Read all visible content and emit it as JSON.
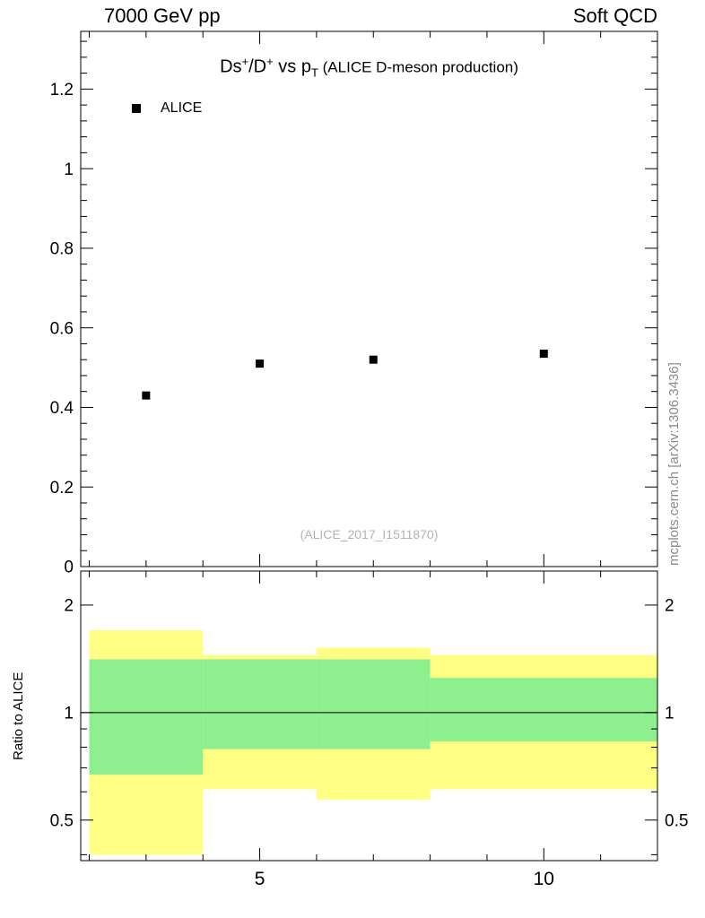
{
  "header": {
    "left": "7000 GeV pp",
    "right": "Soft QCD"
  },
  "title": {
    "p1": "Ds",
    "sup1": "+",
    "p2": "/D",
    "sup2": "+",
    "p3": " vs p",
    "sub": "T",
    "p4": " (ALICE D-meson production)"
  },
  "legend": {
    "label": "ALICE"
  },
  "watermark": "(ALICE_2017_I1511870)",
  "side_text": "mcplots.cern.ch [arXiv:1306.3436]",
  "ratio_axis_label": "Ratio to ALICE",
  "chart_data": [
    {
      "type": "scatter",
      "panel": "top",
      "title": "Ds+/D+ vs pT (ALICE D-meson production)",
      "xlim": [
        1.85,
        12.0
      ],
      "ylim": [
        0,
        1.345
      ],
      "xticks": {
        "major": [
          5,
          10
        ],
        "minor_step": 1
      },
      "yticks": {
        "major": [
          0,
          0.2,
          0.4,
          0.6,
          0.8,
          1,
          1.2
        ],
        "labels": [
          "0",
          "0.2",
          "0.4",
          "0.6",
          "0.8",
          "1",
          "1.2"
        ],
        "minor_step": 0.04
      },
      "series": [
        {
          "name": "ALICE",
          "marker": "square",
          "color": "#000000",
          "x": [
            3,
            5,
            7,
            10
          ],
          "y": [
            0.43,
            0.51,
            0.52,
            0.535
          ]
        }
      ]
    },
    {
      "type": "band",
      "panel": "bottom",
      "ylabel": "Ratio to ALICE",
      "yscale": "log",
      "xlim": [
        1.85,
        12.0
      ],
      "ylim": [
        0.385,
        2.49
      ],
      "xticks": {
        "major": [
          5,
          10
        ],
        "labels": [
          "5",
          "10"
        ],
        "minor_step": 1
      },
      "yticks": {
        "major": [
          0.5,
          1,
          2
        ],
        "labels": [
          "0.5",
          "1",
          "2"
        ],
        "minor": [
          0.4,
          0.6,
          0.7,
          0.8,
          0.9
        ]
      },
      "reference_line": 1,
      "colors": {
        "outer": "#ffff84",
        "inner": "#8def8d"
      },
      "bins": [
        {
          "x": [
            2,
            4
          ],
          "outer": [
            0.4,
            1.7
          ],
          "inner": [
            0.67,
            1.41
          ]
        },
        {
          "x": [
            4,
            6
          ],
          "outer": [
            0.61,
            1.45
          ],
          "inner": [
            0.79,
            1.41
          ]
        },
        {
          "x": [
            6,
            8
          ],
          "outer": [
            0.57,
            1.52
          ],
          "inner": [
            0.79,
            1.41
          ]
        },
        {
          "x": [
            8,
            12
          ],
          "outer": [
            0.61,
            1.45
          ],
          "inner": [
            0.83,
            1.25
          ]
        }
      ]
    }
  ]
}
